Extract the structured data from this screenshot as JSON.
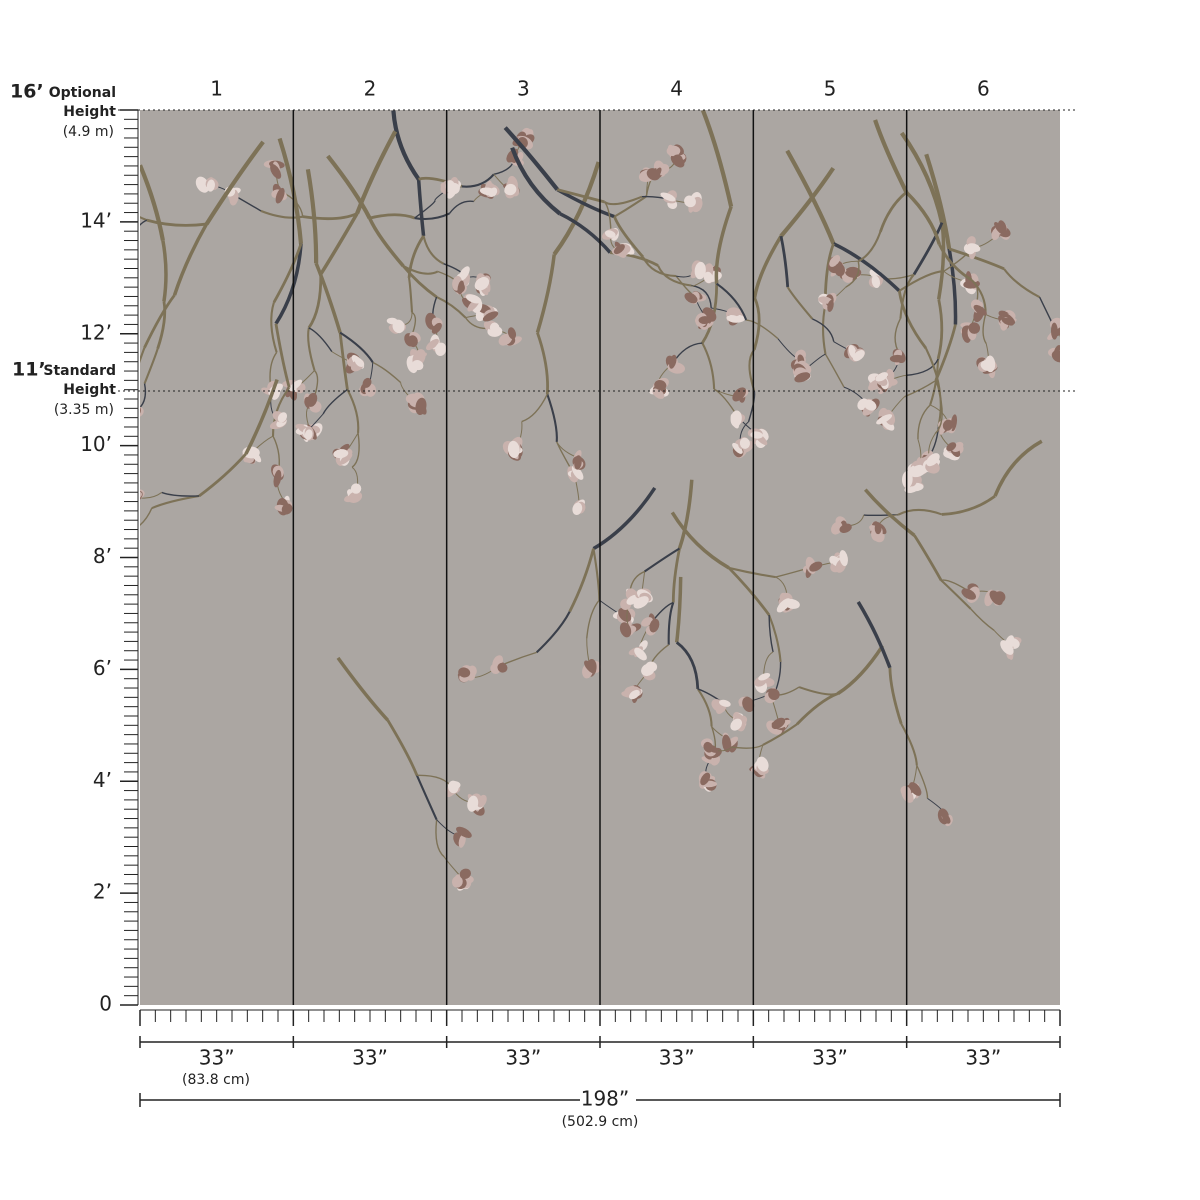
{
  "panels": [
    "1",
    "2",
    "3",
    "4",
    "5",
    "6"
  ],
  "optional_height": {
    "feet": "16’",
    "label": "Optional",
    "label2": "Height",
    "metric": "(4.9 m)"
  },
  "standard_height": {
    "feet": "11’",
    "label": "Standard",
    "label2": "Height",
    "metric": "(3.35 m)"
  },
  "height_labels": [
    "14’",
    "12’",
    "10’",
    "8’",
    "6’",
    "4’",
    "2’",
    "0"
  ],
  "panel_widths": [
    "33”",
    "33”",
    "33”",
    "33”",
    "33”",
    "33”"
  ],
  "panel_width_metric": "(83.8 cm)",
  "total_width": "198”",
  "total_width_metric": "(502.9 cm)"
}
